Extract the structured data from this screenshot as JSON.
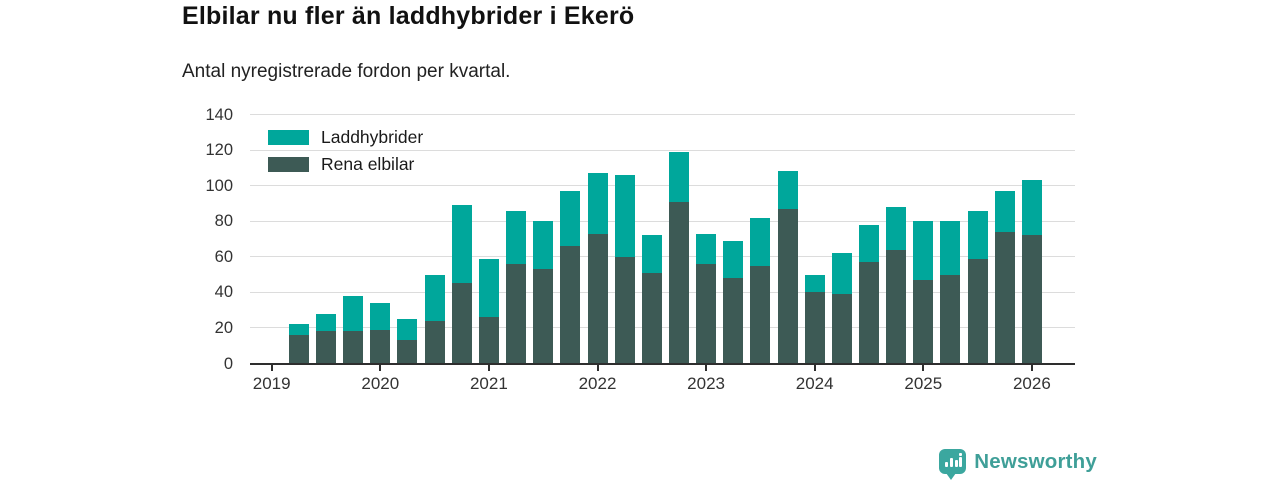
{
  "header": {
    "title": "Elbilar nu fler än laddhybrider i Ekerö",
    "subtitle": "Antal nyregistrerade fordon per kvartal."
  },
  "legend": [
    {
      "label": "Laddhybrider",
      "color": "#00a79b"
    },
    {
      "label": "Rena elbilar",
      "color": "#3d5a55"
    }
  ],
  "branding": {
    "logo_text": "Newsworthy",
    "logo_color": "#3ba79f"
  },
  "chart_data": {
    "type": "bar",
    "stacked": true,
    "title": "Elbilar nu fler än laddhybrider i Ekerö",
    "subtitle": "Antal nyregistrerade fordon per kvartal.",
    "x": [
      "2019 Q2",
      "2019 Q3",
      "2019 Q4",
      "2020 Q1",
      "2020 Q2",
      "2020 Q3",
      "2020 Q4",
      "2021 Q1",
      "2021 Q2",
      "2021 Q3",
      "2021 Q4",
      "2022 Q1",
      "2022 Q2",
      "2022 Q3",
      "2022 Q4",
      "2023 Q1",
      "2023 Q2",
      "2023 Q3",
      "2023 Q4",
      "2024 Q1",
      "2024 Q2",
      "2024 Q3",
      "2024 Q4",
      "2025 Q1",
      "2025 Q2",
      "2025 Q3",
      "2025 Q4",
      "2026 Q1"
    ],
    "series": [
      {
        "name": "Rena elbilar",
        "color": "#3d5a55",
        "values": [
          16,
          18,
          18,
          19,
          13,
          24,
          45,
          26,
          56,
          53,
          66,
          73,
          60,
          51,
          91,
          56,
          48,
          55,
          87,
          40,
          39,
          57,
          64,
          47,
          50,
          59,
          74,
          72
        ]
      },
      {
        "name": "Laddhybrider",
        "color": "#00a79b",
        "values": [
          6,
          10,
          20,
          15,
          12,
          26,
          44,
          33,
          30,
          27,
          31,
          34,
          46,
          21,
          28,
          17,
          21,
          27,
          21,
          10,
          23,
          21,
          24,
          33,
          30,
          27,
          23,
          31
        ]
      }
    ],
    "totals": [
      22,
      28,
      38,
      34,
      25,
      50,
      89,
      59,
      86,
      80,
      97,
      107,
      106,
      72,
      119,
      73,
      69,
      82,
      108,
      50,
      62,
      78,
      88,
      80,
      80,
      86,
      97,
      103
    ],
    "x_tick_labels": [
      "2019",
      "2020",
      "2021",
      "2022",
      "2023",
      "2024",
      "2025",
      "2026"
    ],
    "ylabel": "",
    "xlabel": "",
    "ylim": [
      0,
      140
    ],
    "y_ticks": [
      0,
      20,
      40,
      60,
      80,
      100,
      120,
      140
    ],
    "grid": "horizontal",
    "legend_position": "top-left-inside"
  }
}
